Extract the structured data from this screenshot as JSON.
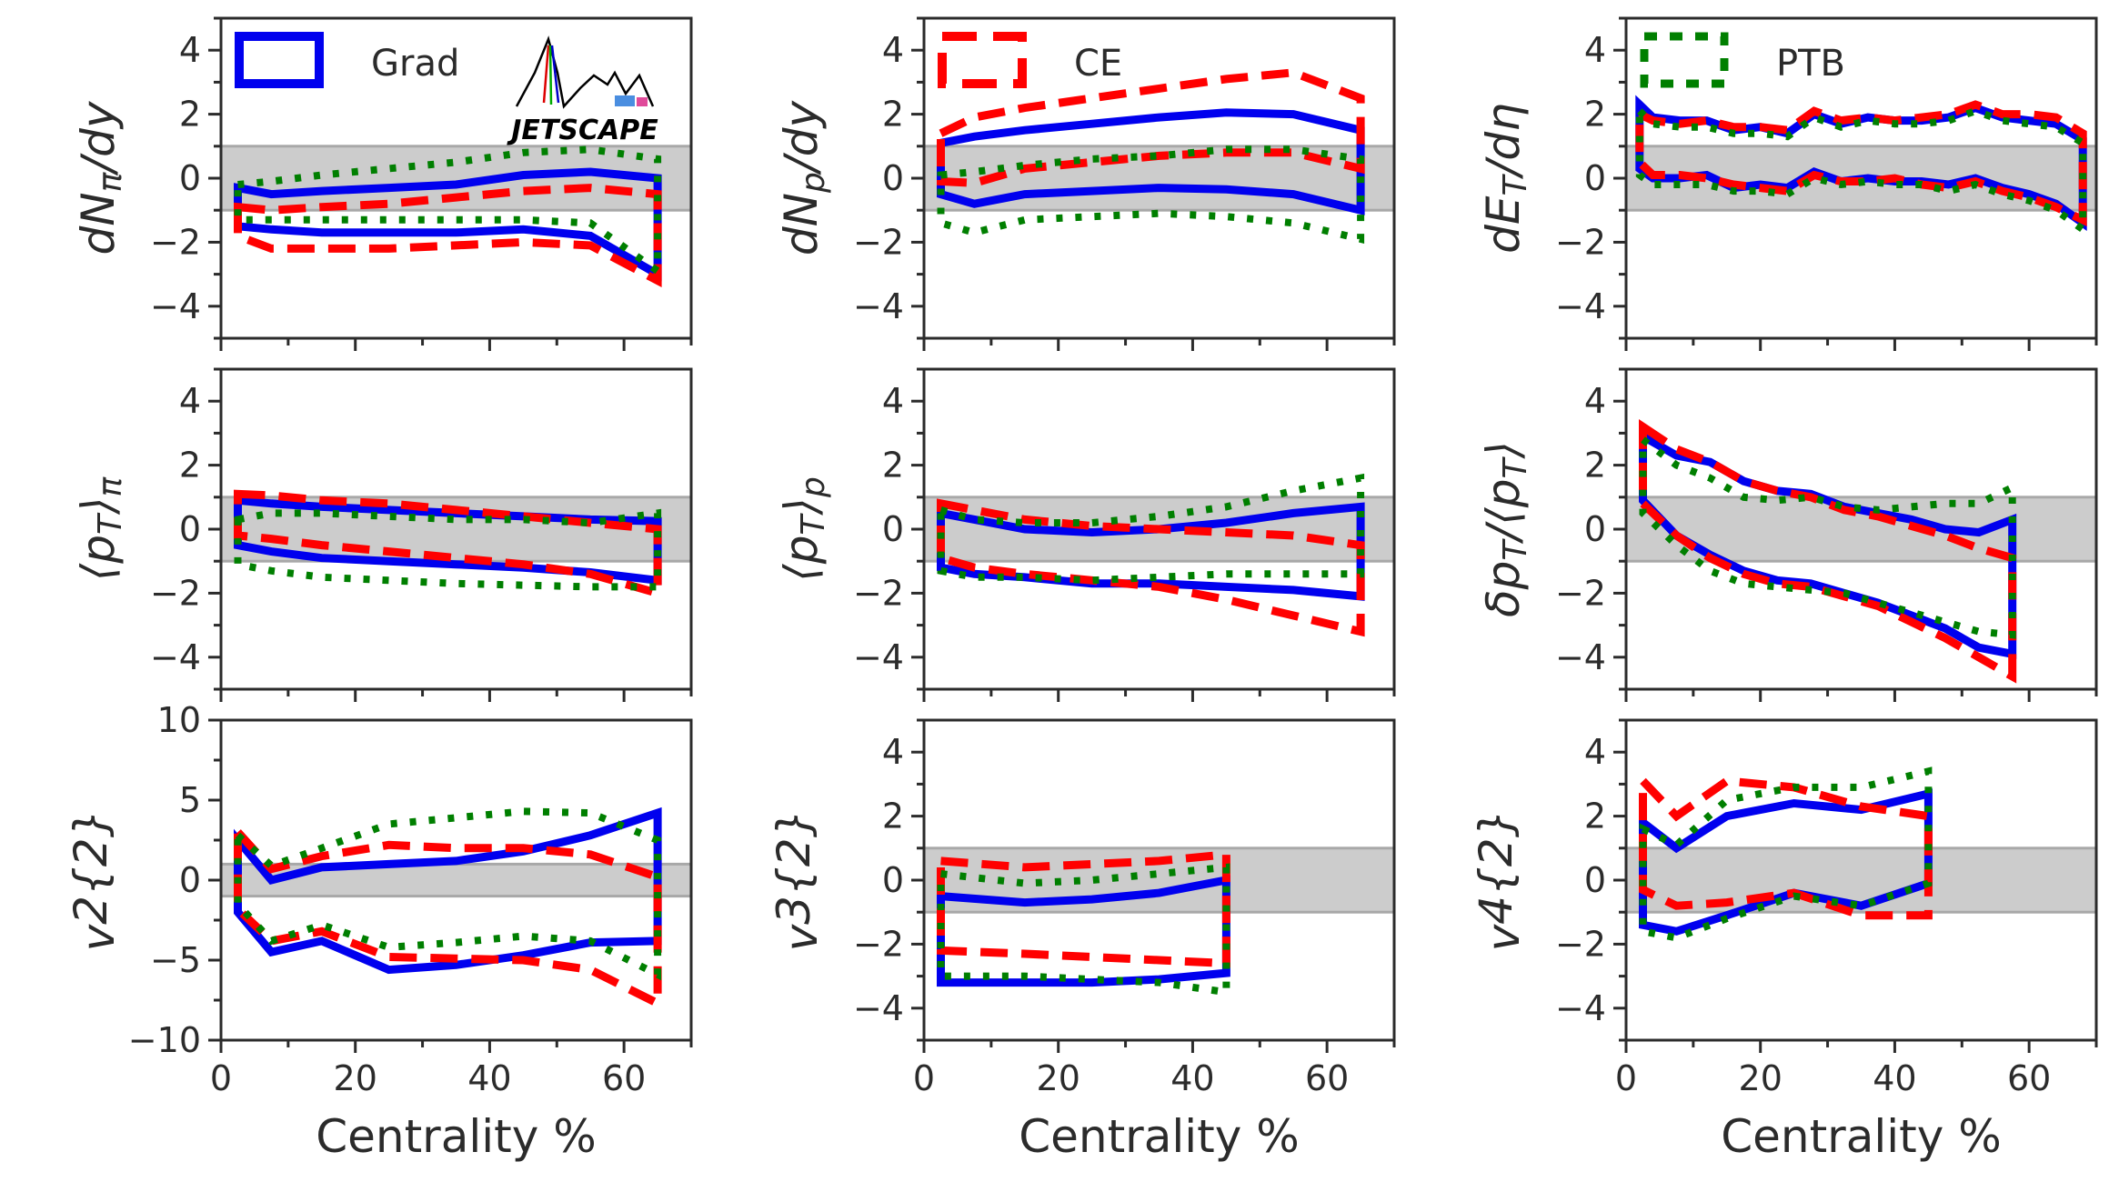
{
  "figure": {
    "xlabel": "Centrality %",
    "xlim": [
      0,
      70
    ],
    "xticks": [
      0,
      20,
      40,
      60
    ],
    "colors": {
      "Grad": "#0000ee",
      "CE": "#ff0000",
      "PTB": "#007f00",
      "band": "#cccccc"
    },
    "logo_text": "JETSCAPE"
  },
  "legend": [
    {
      "name": "Grad",
      "style": "solid",
      "panel": 0
    },
    {
      "name": "CE",
      "style": "dashed",
      "panel": 1
    },
    {
      "name": "PTB",
      "style": "dotted",
      "panel": 2
    }
  ],
  "chart_data": [
    {
      "type": "line",
      "ylabel": "dN_π/dy",
      "ylim": [
        -5,
        5
      ],
      "yticks": [
        -4,
        -2,
        0,
        2,
        4
      ],
      "series": [
        {
          "name": "Grad",
          "x": [
            2.5,
            7.5,
            15,
            25,
            35,
            45,
            55,
            65
          ],
          "upper": [
            -0.3,
            -0.5,
            -0.4,
            -0.3,
            -0.2,
            0.1,
            0.2,
            0.0
          ],
          "lower": [
            -1.5,
            -1.6,
            -1.7,
            -1.7,
            -1.7,
            -1.6,
            -1.8,
            -3.0
          ]
        },
        {
          "name": "CE",
          "x": [
            2.5,
            7.5,
            15,
            25,
            35,
            45,
            55,
            65
          ],
          "upper": [
            -0.9,
            -1.0,
            -0.9,
            -0.8,
            -0.6,
            -0.4,
            -0.3,
            -0.5
          ],
          "lower": [
            -1.8,
            -2.2,
            -2.2,
            -2.2,
            -2.1,
            -2.0,
            -2.1,
            -3.2
          ]
        },
        {
          "name": "PTB",
          "x": [
            2.5,
            7.5,
            15,
            25,
            35,
            45,
            55,
            65
          ],
          "upper": [
            -0.2,
            -0.1,
            0.1,
            0.3,
            0.5,
            0.8,
            0.9,
            0.6
          ],
          "lower": [
            -1.3,
            -1.3,
            -1.3,
            -1.3,
            -1.3,
            -1.3,
            -1.4,
            -2.9
          ]
        }
      ]
    },
    {
      "type": "line",
      "ylabel": "dN_p/dy",
      "ylim": [
        -5,
        5
      ],
      "yticks": [
        -4,
        -2,
        0,
        2,
        4
      ],
      "series": [
        {
          "name": "Grad",
          "x": [
            2.5,
            7.5,
            15,
            25,
            35,
            45,
            55,
            65
          ],
          "upper": [
            1.1,
            1.3,
            1.5,
            1.7,
            1.9,
            2.05,
            2.0,
            1.5
          ],
          "lower": [
            -0.5,
            -0.8,
            -0.5,
            -0.4,
            -0.3,
            -0.35,
            -0.5,
            -1.0
          ]
        },
        {
          "name": "CE",
          "x": [
            2.5,
            7.5,
            15,
            25,
            35,
            45,
            55,
            65
          ],
          "upper": [
            1.4,
            1.9,
            2.2,
            2.5,
            2.8,
            3.1,
            3.3,
            2.5
          ],
          "lower": [
            -0.1,
            -0.15,
            0.3,
            0.5,
            0.7,
            0.8,
            0.8,
            0.3
          ]
        },
        {
          "name": "PTB",
          "x": [
            2.5,
            7.5,
            15,
            25,
            35,
            45,
            55,
            65
          ],
          "upper": [
            0.1,
            0.2,
            0.4,
            0.6,
            0.7,
            0.9,
            0.9,
            0.6
          ],
          "lower": [
            -1.4,
            -1.7,
            -1.3,
            -1.2,
            -1.1,
            -1.2,
            -1.4,
            -1.9
          ]
        }
      ]
    },
    {
      "type": "line",
      "ylabel": "dE_T/dη",
      "ylim": [
        -5,
        5
      ],
      "yticks": [
        -4,
        -2,
        0,
        2,
        4
      ],
      "series": [
        {
          "name": "Grad",
          "x": [
            2,
            4,
            8,
            12,
            16,
            20,
            24,
            28,
            32,
            36,
            40,
            44,
            48,
            52,
            56,
            60,
            64,
            68
          ],
          "upper": [
            2.3,
            1.9,
            1.8,
            1.8,
            1.5,
            1.6,
            1.4,
            2.0,
            1.7,
            1.9,
            1.8,
            1.8,
            1.9,
            2.2,
            1.9,
            1.8,
            1.7,
            1.2
          ],
          "lower": [
            0.3,
            0.0,
            0.0,
            0.1,
            -0.3,
            -0.2,
            -0.3,
            0.2,
            -0.1,
            0.0,
            -0.1,
            -0.1,
            -0.2,
            0.0,
            -0.3,
            -0.5,
            -0.8,
            -1.4
          ]
        },
        {
          "name": "CE",
          "x": [
            2,
            4,
            8,
            12,
            16,
            20,
            24,
            28,
            32,
            36,
            40,
            44,
            48,
            52,
            56,
            60,
            64,
            68
          ],
          "upper": [
            2.0,
            1.8,
            1.7,
            1.8,
            1.6,
            1.6,
            1.5,
            2.1,
            1.8,
            1.9,
            1.8,
            1.9,
            2.0,
            2.3,
            2.0,
            2.0,
            1.9,
            1.4
          ],
          "lower": [
            0.5,
            0.1,
            0.1,
            0.0,
            -0.2,
            -0.3,
            -0.4,
            0.1,
            -0.1,
            -0.1,
            0.0,
            -0.2,
            -0.3,
            -0.1,
            -0.4,
            -0.6,
            -0.9,
            -1.3
          ]
        },
        {
          "name": "PTB",
          "x": [
            2,
            4,
            8,
            12,
            16,
            20,
            24,
            28,
            32,
            36,
            40,
            44,
            48,
            52,
            56,
            60,
            64,
            68
          ],
          "upper": [
            2.1,
            1.7,
            1.6,
            1.6,
            1.4,
            1.4,
            1.3,
            1.9,
            1.6,
            1.8,
            1.7,
            1.7,
            1.8,
            2.1,
            1.8,
            1.7,
            1.6,
            1.1
          ],
          "lower": [
            0.1,
            -0.2,
            -0.2,
            -0.2,
            -0.4,
            -0.4,
            -0.5,
            0.0,
            -0.2,
            -0.1,
            -0.2,
            -0.2,
            -0.4,
            -0.2,
            -0.5,
            -0.7,
            -1.0,
            -1.6
          ]
        }
      ]
    },
    {
      "type": "line",
      "ylabel": "⟨p_T⟩_π",
      "ylim": [
        -5,
        5
      ],
      "yticks": [
        -4,
        -2,
        0,
        2,
        4
      ],
      "series": [
        {
          "name": "Grad",
          "x": [
            2.5,
            7.5,
            15,
            25,
            35,
            45,
            55,
            65
          ],
          "upper": [
            0.9,
            0.8,
            0.7,
            0.6,
            0.5,
            0.4,
            0.3,
            0.25
          ],
          "lower": [
            -0.5,
            -0.7,
            -0.9,
            -1.0,
            -1.1,
            -1.2,
            -1.35,
            -1.6
          ]
        },
        {
          "name": "CE",
          "x": [
            2.5,
            7.5,
            15,
            25,
            35,
            45,
            55,
            65
          ],
          "upper": [
            1.1,
            1.05,
            0.9,
            0.8,
            0.6,
            0.4,
            0.2,
            0.0
          ],
          "lower": [
            -0.2,
            -0.3,
            -0.5,
            -0.7,
            -0.9,
            -1.1,
            -1.4,
            -2.0
          ]
        },
        {
          "name": "PTB",
          "x": [
            2.5,
            7.5,
            15,
            25,
            35,
            45,
            55,
            65
          ],
          "upper": [
            0.3,
            0.5,
            0.5,
            0.4,
            0.3,
            0.3,
            0.2,
            0.5
          ],
          "lower": [
            -1.1,
            -1.3,
            -1.5,
            -1.6,
            -1.7,
            -1.75,
            -1.8,
            -1.8
          ]
        }
      ]
    },
    {
      "type": "line",
      "ylabel": "⟨p_T⟩_p",
      "ylim": [
        -5,
        5
      ],
      "yticks": [
        -4,
        -2,
        0,
        2,
        4
      ],
      "series": [
        {
          "name": "Grad",
          "x": [
            2.5,
            7.5,
            15,
            25,
            35,
            45,
            55,
            65
          ],
          "upper": [
            0.5,
            0.3,
            0.0,
            -0.1,
            0.0,
            0.2,
            0.5,
            0.7
          ],
          "lower": [
            -1.2,
            -1.4,
            -1.5,
            -1.7,
            -1.7,
            -1.8,
            -1.9,
            -2.1
          ]
        },
        {
          "name": "CE",
          "x": [
            2.5,
            7.5,
            15,
            25,
            35,
            45,
            55,
            65
          ],
          "upper": [
            0.8,
            0.6,
            0.3,
            0.1,
            0.0,
            -0.1,
            -0.2,
            -0.5
          ],
          "lower": [
            -0.9,
            -1.2,
            -1.4,
            -1.6,
            -1.8,
            -2.2,
            -2.7,
            -3.2
          ]
        },
        {
          "name": "PTB",
          "x": [
            2.5,
            7.5,
            15,
            25,
            35,
            45,
            55,
            65
          ],
          "upper": [
            0.6,
            0.3,
            0.2,
            0.2,
            0.4,
            0.7,
            1.2,
            1.6
          ],
          "lower": [
            -1.3,
            -1.5,
            -1.5,
            -1.6,
            -1.5,
            -1.4,
            -1.4,
            -1.4
          ]
        }
      ]
    },
    {
      "type": "line",
      "ylabel": "δp_T/⟨p_T⟩",
      "ylim": [
        -5,
        5
      ],
      "yticks": [
        -4,
        -2,
        0,
        2,
        4
      ],
      "series": [
        {
          "name": "Grad",
          "x": [
            2.5,
            7.5,
            12.5,
            17.5,
            22.5,
            27.5,
            32.5,
            37.5,
            42.5,
            47.5,
            52.5,
            57.5
          ],
          "upper": [
            2.9,
            2.3,
            2.1,
            1.5,
            1.2,
            1.1,
            0.7,
            0.5,
            0.3,
            0.0,
            -0.1,
            0.3
          ],
          "lower": [
            0.9,
            -0.2,
            -0.8,
            -1.3,
            -1.6,
            -1.7,
            -2.0,
            -2.3,
            -2.7,
            -3.1,
            -3.7,
            -3.9
          ]
        },
        {
          "name": "CE",
          "x": [
            2.5,
            7.5,
            12.5,
            17.5,
            22.5,
            27.5,
            32.5,
            37.5,
            42.5,
            47.5,
            52.5,
            57.5
          ],
          "upper": [
            3.2,
            2.5,
            2.1,
            1.5,
            1.2,
            1.0,
            0.6,
            0.4,
            0.1,
            -0.2,
            -0.6,
            -0.9
          ],
          "lower": [
            0.8,
            -0.2,
            -0.9,
            -1.4,
            -1.7,
            -1.8,
            -2.1,
            -2.4,
            -2.9,
            -3.4,
            -4.0,
            -4.6
          ]
        },
        {
          "name": "PTB",
          "x": [
            2.5,
            7.5,
            12.5,
            17.5,
            22.5,
            27.5,
            32.5,
            37.5,
            42.5,
            47.5,
            52.5,
            57.5
          ],
          "upper": [
            2.8,
            2.0,
            1.6,
            1.0,
            0.9,
            1.0,
            0.7,
            0.6,
            0.7,
            0.8,
            0.8,
            1.3
          ],
          "lower": [
            0.5,
            -0.5,
            -1.3,
            -1.7,
            -1.8,
            -1.9,
            -2.0,
            -2.3,
            -2.6,
            -2.9,
            -3.2,
            -3.3
          ]
        }
      ]
    },
    {
      "type": "line",
      "ylabel": "v_2{2}",
      "ylim": [
        -10,
        10
      ],
      "yticks": [
        -10,
        -5,
        0,
        5,
        10
      ],
      "series": [
        {
          "name": "Grad",
          "x": [
            2.5,
            7.5,
            15,
            25,
            35,
            45,
            55,
            65
          ],
          "upper": [
            2.5,
            0.0,
            0.8,
            1.0,
            1.2,
            1.8,
            2.8,
            4.2
          ],
          "lower": [
            -2.0,
            -4.5,
            -3.8,
            -5.6,
            -5.3,
            -4.7,
            -3.9,
            -3.8
          ]
        },
        {
          "name": "CE",
          "x": [
            2.5,
            7.5,
            15,
            25,
            35,
            45,
            55,
            65
          ],
          "upper": [
            3.0,
            0.7,
            1.5,
            2.2,
            2.0,
            2.0,
            1.6,
            0.2
          ],
          "lower": [
            -1.8,
            -3.8,
            -3.2,
            -4.8,
            -4.9,
            -5.0,
            -5.6,
            -7.7
          ]
        },
        {
          "name": "PTB",
          "x": [
            2.5,
            7.5,
            15,
            25,
            35,
            45,
            55,
            65
          ],
          "upper": [
            2.8,
            0.9,
            2.0,
            3.5,
            3.9,
            4.3,
            4.2,
            2.5
          ],
          "lower": [
            -1.5,
            -3.8,
            -2.8,
            -4.2,
            -3.9,
            -3.5,
            -3.8,
            -5.9
          ]
        }
      ]
    },
    {
      "type": "line",
      "ylabel": "v_3{2}",
      "ylim": [
        -5,
        5
      ],
      "yticks": [
        -4,
        -2,
        0,
        2,
        4
      ],
      "series": [
        {
          "name": "Grad",
          "x": [
            2.5,
            15,
            25,
            35,
            45
          ],
          "upper": [
            -0.5,
            -0.7,
            -0.6,
            -0.4,
            0.0
          ],
          "lower": [
            -3.2,
            -3.2,
            -3.2,
            -3.1,
            -2.9
          ]
        },
        {
          "name": "CE",
          "x": [
            2.5,
            15,
            25,
            35,
            45
          ],
          "upper": [
            0.6,
            0.4,
            0.5,
            0.6,
            0.8
          ],
          "lower": [
            -2.2,
            -2.3,
            -2.4,
            -2.5,
            -2.6
          ]
        },
        {
          "name": "PTB",
          "x": [
            2.5,
            15,
            25,
            35,
            45
          ],
          "upper": [
            0.2,
            -0.1,
            0.0,
            0.2,
            0.4
          ],
          "lower": [
            -3.0,
            -3.0,
            -3.1,
            -3.2,
            -3.5
          ]
        }
      ]
    },
    {
      "type": "line",
      "ylabel": "v_4{2}",
      "ylim": [
        -5,
        5
      ],
      "yticks": [
        -4,
        -2,
        0,
        2,
        4
      ],
      "series": [
        {
          "name": "Grad",
          "x": [
            2.5,
            7.5,
            15,
            25,
            35,
            45
          ],
          "upper": [
            1.8,
            1.0,
            2.0,
            2.4,
            2.2,
            2.7
          ],
          "lower": [
            -1.4,
            -1.6,
            -1.1,
            -0.4,
            -0.8,
            -0.1
          ]
        },
        {
          "name": "CE",
          "x": [
            2.5,
            7.5,
            15,
            25,
            35,
            45
          ],
          "upper": [
            3.1,
            2.0,
            3.1,
            2.9,
            2.3,
            2.0
          ],
          "lower": [
            -0.3,
            -0.8,
            -0.7,
            -0.4,
            -1.1,
            -1.1
          ]
        },
        {
          "name": "PTB",
          "x": [
            2.5,
            7.5,
            15,
            25,
            35,
            45
          ],
          "upper": [
            1.6,
            1.1,
            2.5,
            2.9,
            2.9,
            3.4
          ],
          "lower": [
            -1.6,
            -1.8,
            -1.2,
            -0.5,
            -0.8,
            -0.1
          ]
        }
      ]
    }
  ]
}
